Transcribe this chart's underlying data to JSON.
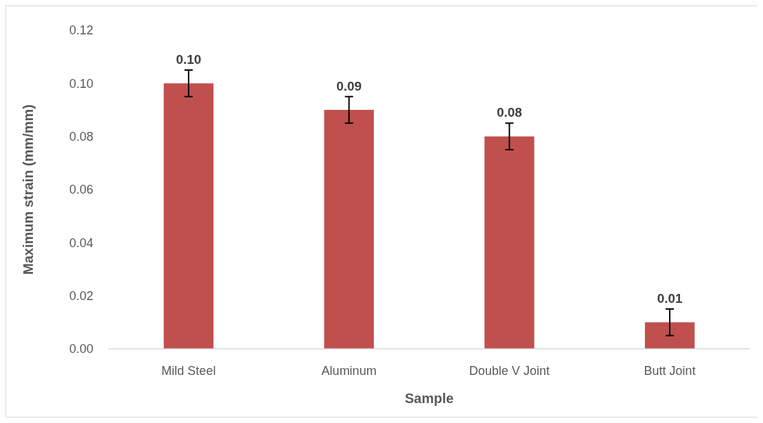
{
  "chart_data": {
    "type": "bar",
    "xlabel": "Sample",
    "ylabel": "Maximum strain (mm/mm)",
    "categories": [
      "Mild Steel",
      "Aluminum",
      "Double V Joint",
      "Butt Joint"
    ],
    "values": [
      0.1,
      0.09,
      0.08,
      0.01
    ],
    "errors": [
      0.005,
      0.005,
      0.005,
      0.005
    ],
    "value_labels": [
      "0.10",
      "0.09",
      "0.08",
      "0.01"
    ],
    "color": "#c0504d",
    "ylim": [
      0,
      0.12
    ],
    "yticks": [
      {
        "value": 0,
        "label": "0.00"
      },
      {
        "value": 0.02,
        "label": "0.02"
      },
      {
        "value": 0.04,
        "label": "0.04"
      },
      {
        "value": 0.06,
        "label": "0.06"
      },
      {
        "value": 0.08,
        "label": "0.08"
      },
      {
        "value": 0.1,
        "label": "0.10"
      },
      {
        "value": 0.12,
        "label": "0.12"
      }
    ]
  }
}
